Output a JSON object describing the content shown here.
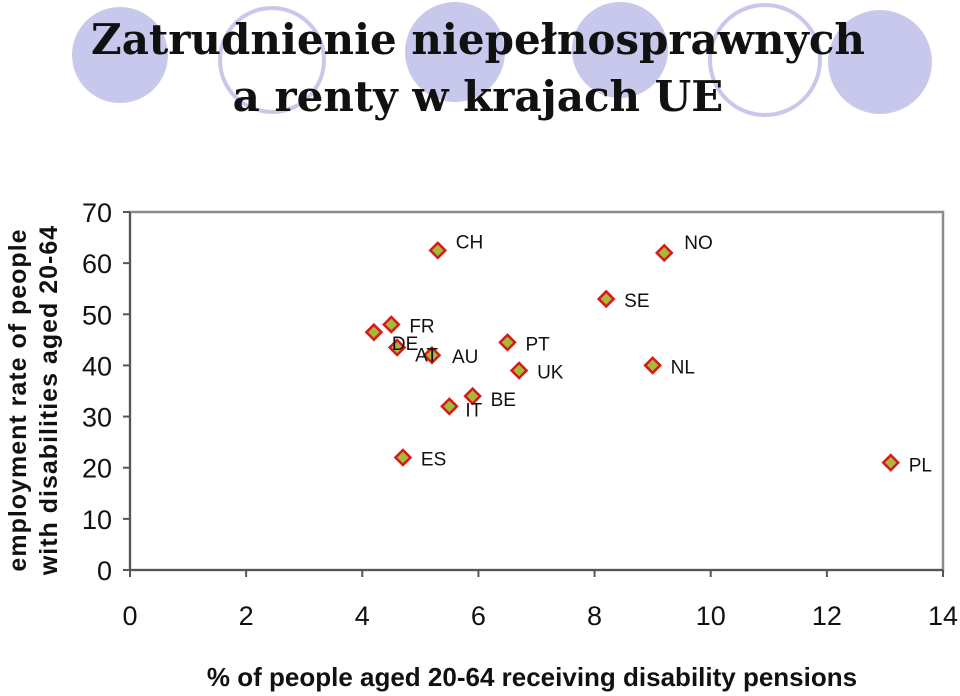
{
  "slide": {
    "title_line1": "Zatrudnienie niepełnosprawnych",
    "title_line2": "a renty w krajach UE",
    "decor_color": "#c8c8ec"
  },
  "chart_data": {
    "type": "scatter",
    "title": "",
    "xlabel": "% of people aged 20-64 receiving disability pensions",
    "ylabel_lines": [
      "employment rate of people",
      "with disabilities aged 20-64"
    ],
    "xlim": [
      0,
      14
    ],
    "ylim": [
      0,
      70
    ],
    "xticks": [
      0,
      2,
      4,
      6,
      8,
      10,
      12,
      14
    ],
    "yticks": [
      0,
      10,
      20,
      30,
      40,
      50,
      60,
      70
    ],
    "grid": false,
    "legend": "none",
    "marker": {
      "shape": "diamond",
      "fill": "#a8b83a",
      "stroke": "#d61a1a"
    },
    "points": [
      {
        "label": "CH",
        "x": 5.3,
        "y": 62.5
      },
      {
        "label": "NO",
        "x": 9.2,
        "y": 62
      },
      {
        "label": "SE",
        "x": 8.2,
        "y": 53
      },
      {
        "label": "FR",
        "x": 4.5,
        "y": 48
      },
      {
        "label": "DE",
        "x": 4.2,
        "y": 46.5
      },
      {
        "label": "AT",
        "x": 4.6,
        "y": 43.5
      },
      {
        "label": "AU",
        "x": 5.2,
        "y": 42
      },
      {
        "label": "PT",
        "x": 6.5,
        "y": 44.5
      },
      {
        "label": "UK",
        "x": 6.7,
        "y": 39
      },
      {
        "label": "NL",
        "x": 9.0,
        "y": 40
      },
      {
        "label": "BE",
        "x": 5.9,
        "y": 34
      },
      {
        "label": "IT",
        "x": 5.5,
        "y": 32
      },
      {
        "label": "ES",
        "x": 4.7,
        "y": 22
      },
      {
        "label": "PL",
        "x": 13.1,
        "y": 21
      }
    ]
  }
}
